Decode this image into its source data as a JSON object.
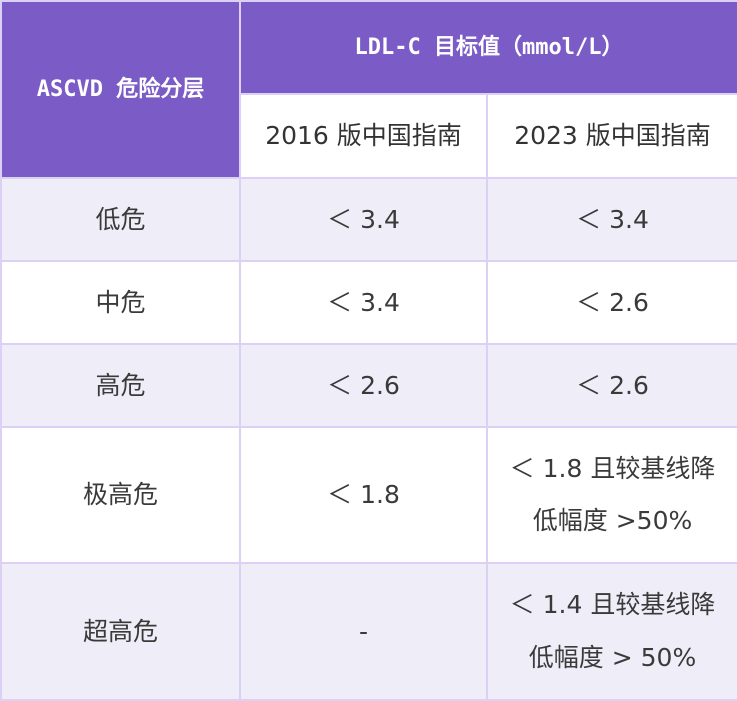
{
  "colors": {
    "header": "#7b5cc6",
    "border": "#dcd0f5",
    "alt_row": "#efedf7"
  },
  "header": {
    "risk": "ASCVD 危险分层",
    "target": "LDL-C 目标值（mmol/L）",
    "col_2016": "2016 版中国指南",
    "col_2023": "2023 版中国指南"
  },
  "rows": [
    {
      "risk": "低危",
      "v2016": "＜ 3.4",
      "v2023": [
        "＜ 3.4"
      ]
    },
    {
      "risk": "中危",
      "v2016": "＜ 3.4",
      "v2023": [
        "＜ 2.6"
      ]
    },
    {
      "risk": "高危",
      "v2016": "＜ 2.6",
      "v2023": [
        "＜ 2.6"
      ]
    },
    {
      "risk": "极高危",
      "v2016": "＜ 1.8",
      "v2023": [
        "＜ 1.8 且较基线降",
        "低幅度 >50%"
      ]
    },
    {
      "risk": "超高危",
      "v2016": "-",
      "v2023": [
        "＜ 1.4 且较基线降",
        "低幅度 > 50%"
      ]
    }
  ]
}
